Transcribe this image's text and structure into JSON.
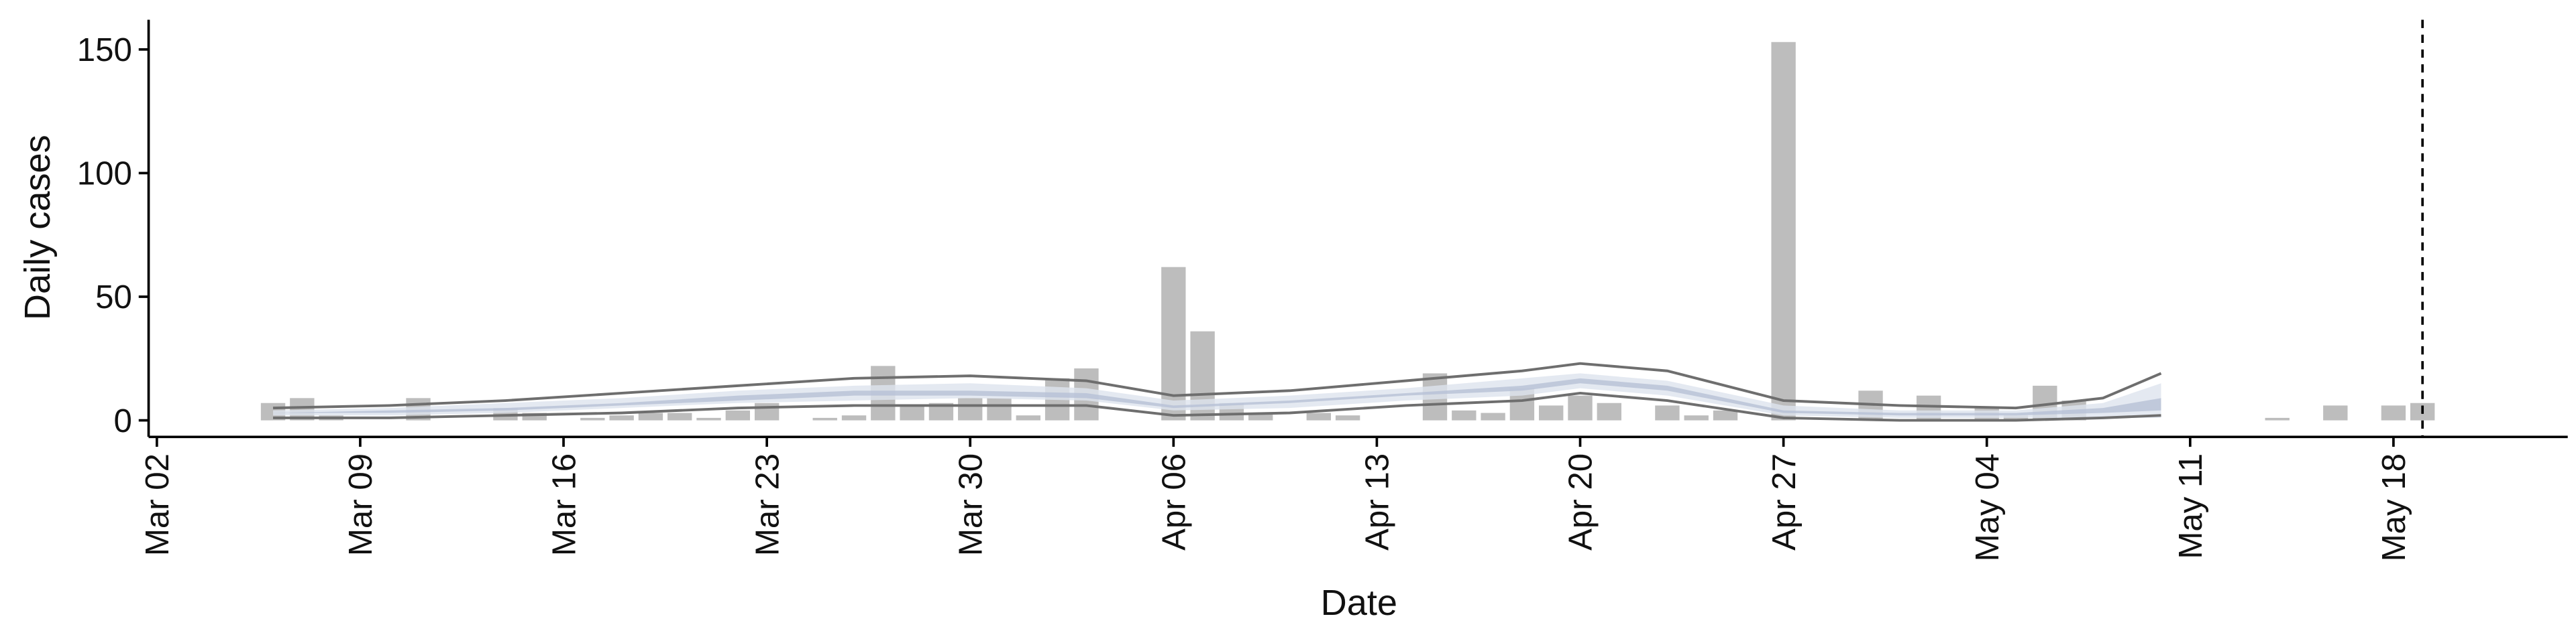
{
  "chart_data": {
    "type": "bar",
    "y_label": "Daily cases",
    "x_label": "Date",
    "x": [
      "Mar 06",
      "Mar 07",
      "Mar 08",
      "Mar 11",
      "Mar 14",
      "Mar 15",
      "Mar 17",
      "Mar 18",
      "Mar 19",
      "Mar 20",
      "Mar 21",
      "Mar 22",
      "Mar 23",
      "Mar 25",
      "Mar 26",
      "Mar 27",
      "Mar 28",
      "Mar 29",
      "Mar 30",
      "Mar 31",
      "Apr 01",
      "Apr 02",
      "Apr 03",
      "Apr 06",
      "Apr 07",
      "Apr 08",
      "Apr 09",
      "Apr 11",
      "Apr 12",
      "Apr 15",
      "Apr 16",
      "Apr 17",
      "Apr 18",
      "Apr 19",
      "Apr 20",
      "Apr 21",
      "Apr 23",
      "Apr 24",
      "Apr 25",
      "Apr 27",
      "Apr 30",
      "May 02",
      "May 04",
      "May 05",
      "May 06",
      "May 07",
      "May 14",
      "May 16",
      "May 18",
      "May 19"
    ],
    "values": [
      7,
      9,
      2,
      9,
      5,
      3,
      1,
      2,
      3,
      3,
      1,
      4,
      7,
      1,
      2,
      22,
      6,
      7,
      9,
      9,
      2,
      17,
      21,
      62,
      36,
      7,
      3,
      3,
      2,
      19,
      4,
      3,
      13,
      6,
      10,
      7,
      6,
      2,
      4,
      153,
      12,
      10,
      5,
      2,
      14,
      8,
      1,
      6,
      6,
      7
    ],
    "color": "#bdbdbd",
    "curve_x": [
      "Mar 06",
      "Mar 10",
      "Mar 14",
      "Mar 18",
      "Mar 22",
      "Mar 26",
      "Mar 30",
      "Apr 03",
      "Apr 06",
      "Apr 10",
      "Apr 14",
      "Apr 18",
      "Apr 20",
      "Apr 23",
      "Apr 27",
      "May 01",
      "May 05",
      "May 08",
      "May 10"
    ],
    "bands": [
      {
        "color": "#dde3ee",
        "lower": [
          2,
          2,
          3,
          5,
          7,
          8,
          9,
          8,
          4,
          5,
          8,
          10,
          13,
          10,
          2,
          1,
          1,
          1,
          1
        ],
        "upper": [
          4,
          5,
          7,
          9,
          12,
          14,
          15,
          13,
          8,
          10,
          13,
          17,
          19,
          16,
          6,
          4,
          4,
          7,
          15
        ]
      },
      {
        "color": "#b7c1d6",
        "lower": [
          3,
          3,
          4,
          6,
          8,
          10,
          10,
          9,
          5,
          7,
          10,
          12,
          15,
          12,
          3,
          2,
          2,
          3,
          4
        ],
        "upper": [
          3,
          4,
          5,
          7,
          10,
          12,
          12,
          11,
          6,
          8,
          11,
          14,
          17,
          14,
          4,
          3,
          3,
          5,
          9
        ]
      }
    ],
    "lines": [
      {
        "color": "#6e6e6e",
        "values": [
          5,
          6,
          8,
          11,
          14,
          17,
          18,
          16,
          10,
          12,
          16,
          20,
          23,
          20,
          8,
          6,
          5,
          9,
          19
        ]
      },
      {
        "color": "#6e6e6e",
        "values": [
          1,
          1,
          2,
          3,
          5,
          6,
          6,
          6,
          2,
          3,
          6,
          8,
          11,
          8,
          1,
          0,
          0,
          1,
          2
        ]
      }
    ],
    "vline": "May 19",
    "xlim": [
      "Mar 02",
      "May 24"
    ],
    "xticks": [
      "Mar 02",
      "Mar 09",
      "Mar 16",
      "Mar 23",
      "Mar 30",
      "Apr 06",
      "Apr 13",
      "Apr 20",
      "Apr 27",
      "May 04",
      "May 11",
      "May 18"
    ],
    "ylim": [
      -6.7,
      162
    ],
    "yticks": [
      0,
      50,
      100,
      150
    ]
  }
}
